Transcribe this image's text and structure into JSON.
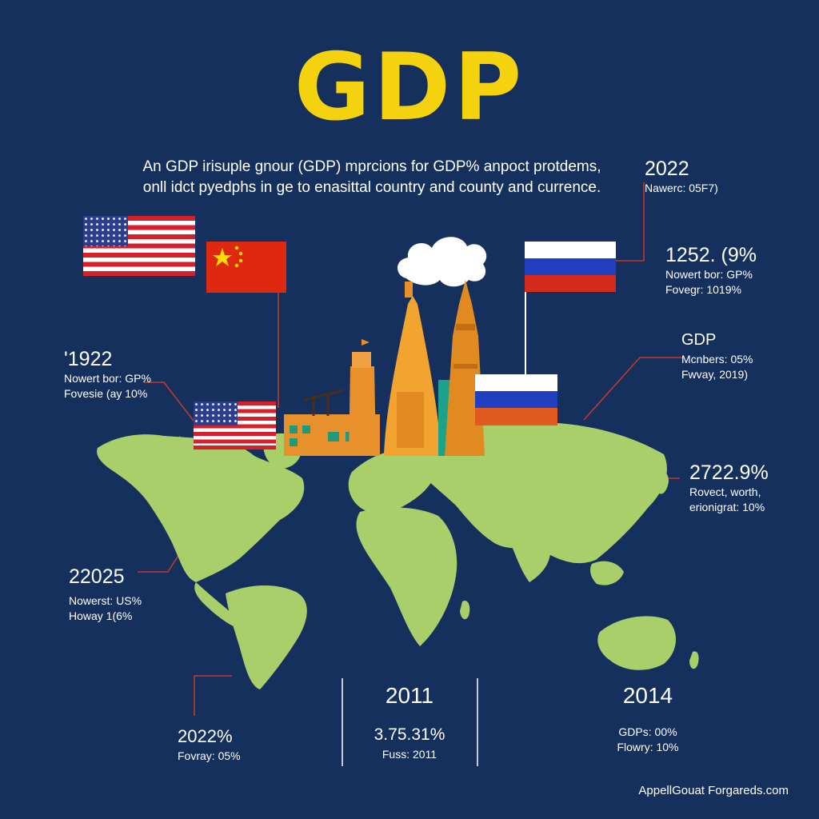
{
  "title": "GDP",
  "subtitle": {
    "line1": "An GDP irisuple gnour (GDP) mprcions for  GDP% anpoct protdems,",
    "line2": "onll idct pyedphs in ge to enasittal country and county and currence."
  },
  "stats": [
    {
      "id": "right-2022",
      "big": "2022",
      "lines": [
        "Nawerc: 05F7)"
      ]
    },
    {
      "id": "right-1252",
      "big": "1252. (9%",
      "lines": [
        "Nowert bor: GP%",
        "Fovegr: 1019%"
      ]
    },
    {
      "id": "right-gdp",
      "big": "GDP",
      "lines": [
        "Mcnbers: 05%",
        "Fwvay, 2019)"
      ]
    },
    {
      "id": "right-2722",
      "big": "2722.9%",
      "lines": [
        "Rovect, worth,",
        "erionigrat: 10%"
      ]
    },
    {
      "id": "left-1922",
      "big": "'1922",
      "lines": [
        "Nowert bor: GP%",
        "Fovesie (ay 10%"
      ]
    },
    {
      "id": "left-22025",
      "big": "22025",
      "lines": [
        "Nowerst: US%",
        "Howay 1(6%"
      ]
    },
    {
      "id": "bottom-2022",
      "big": "2022%",
      "lines": [
        "Fovray: 05%"
      ]
    },
    {
      "id": "bottom-2011",
      "big": "2011",
      "big2": "3.75.31%",
      "lines": [
        "Fuss: 2011"
      ]
    },
    {
      "id": "bottom-2014",
      "big": "2014",
      "lines": [
        "GDPs: 00%",
        "Flowry: 10%"
      ]
    }
  ],
  "footer": "AppellGouat Forgareds.com",
  "colors": {
    "background": "#16305e",
    "title": "#f5d20e",
    "continents": "#a8cf6a",
    "connector": "#c0392b",
    "industry": "#e8902b"
  },
  "icons": [
    "usa-flag",
    "china-flag",
    "russia-flag",
    "factory",
    "tower",
    "smoke-cloud"
  ]
}
